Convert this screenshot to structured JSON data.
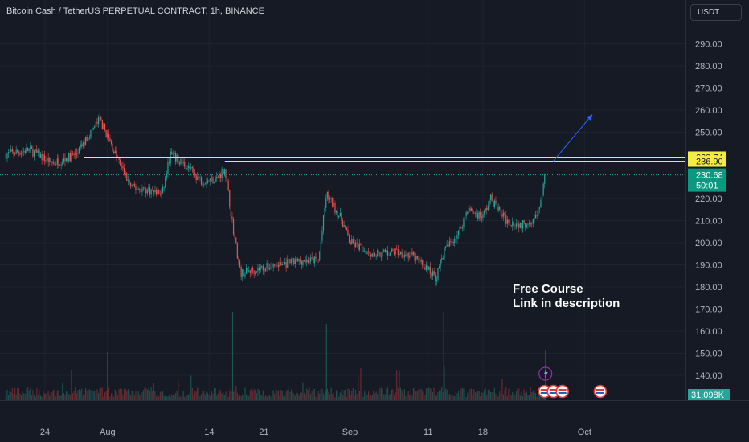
{
  "header": {
    "title": "Bitcoin Cash / TetherUS PERPETUAL CONTRACT, 1h, BINANCE",
    "currency": "USDT"
  },
  "colors": {
    "background": "#161a25",
    "up": "#26a69a",
    "down": "#ef5350",
    "level_line": "#f5ec42",
    "arrow": "#2962ff",
    "price_label": "#089981",
    "volume_label": "#26a69a"
  },
  "annotation": {
    "line1": "Free Course",
    "line2": "Link in description"
  },
  "chart_data": {
    "type": "candlestick",
    "symbol": "Bitcoin Cash / TetherUS PERPETUAL CONTRACT",
    "interval": "1h",
    "exchange": "BINANCE",
    "y_ticks": [
      140,
      150,
      160,
      170,
      180,
      190,
      200,
      210,
      220,
      250,
      260,
      270,
      280,
      290
    ],
    "x_ticks": [
      "24",
      "Aug",
      "14",
      "21",
      "Sep",
      "11",
      "18",
      "Oct"
    ],
    "price_path": [
      {
        "date": "2023-07-19",
        "price": 240
      },
      {
        "date": "2023-07-22",
        "price": 242
      },
      {
        "date": "2023-07-25",
        "price": 236
      },
      {
        "date": "2023-07-28",
        "price": 240
      },
      {
        "date": "2023-07-31",
        "price": 256
      },
      {
        "date": "2023-08-02",
        "price": 240
      },
      {
        "date": "2023-08-04",
        "price": 225
      },
      {
        "date": "2023-08-06",
        "price": 224
      },
      {
        "date": "2023-08-08",
        "price": 222
      },
      {
        "date": "2023-08-09",
        "price": 240
      },
      {
        "date": "2023-08-11",
        "price": 235
      },
      {
        "date": "2023-08-13",
        "price": 228
      },
      {
        "date": "2023-08-15",
        "price": 229
      },
      {
        "date": "2023-08-16",
        "price": 234
      },
      {
        "date": "2023-08-17",
        "price": 208
      },
      {
        "date": "2023-08-18",
        "price": 186
      },
      {
        "date": "2023-08-20",
        "price": 188
      },
      {
        "date": "2023-08-23",
        "price": 190
      },
      {
        "date": "2023-08-26",
        "price": 192
      },
      {
        "date": "2023-08-28",
        "price": 192
      },
      {
        "date": "2023-08-29",
        "price": 222
      },
      {
        "date": "2023-08-31",
        "price": 210
      },
      {
        "date": "2023-09-01",
        "price": 200
      },
      {
        "date": "2023-09-04",
        "price": 195
      },
      {
        "date": "2023-09-07",
        "price": 196
      },
      {
        "date": "2023-09-09",
        "price": 194
      },
      {
        "date": "2023-09-11",
        "price": 188
      },
      {
        "date": "2023-09-12",
        "price": 184
      },
      {
        "date": "2023-09-13",
        "price": 196
      },
      {
        "date": "2023-09-15",
        "price": 205
      },
      {
        "date": "2023-09-16",
        "price": 215
      },
      {
        "date": "2023-09-18",
        "price": 212
      },
      {
        "date": "2023-09-19",
        "price": 220
      },
      {
        "date": "2023-09-21",
        "price": 210
      },
      {
        "date": "2023-09-23",
        "price": 208
      },
      {
        "date": "2023-09-25",
        "price": 212
      },
      {
        "date": "2023-09-26",
        "price": 230.68
      }
    ],
    "horizontal_levels": [
      238.74,
      236.9
    ],
    "current_price": "230.68",
    "level_labels": [
      "238.74",
      "236.90"
    ],
    "countdown": "50:01",
    "volume_label": "31.098K",
    "forecast_arrow": {
      "from": {
        "date": "2023-09-27",
        "price": 236.9
      },
      "to": {
        "date": "2023-10-02",
        "price": 258
      }
    }
  }
}
